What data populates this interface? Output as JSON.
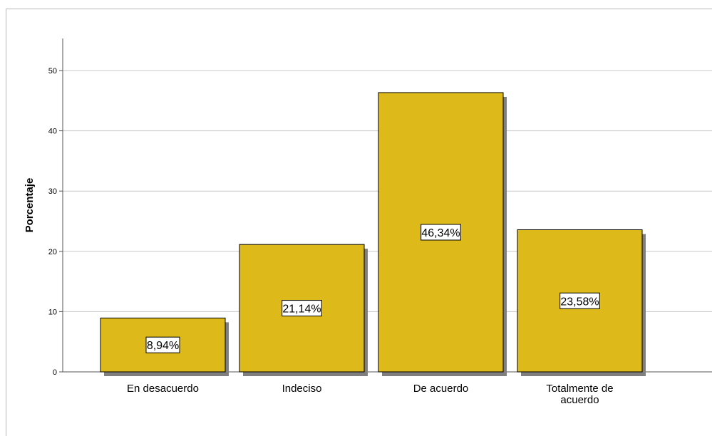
{
  "chart_data": {
    "type": "bar",
    "categories": [
      "En desacuerdo",
      "Indeciso",
      "De acuerdo",
      "Totalmente de acuerdo"
    ],
    "category_label_lines": [
      [
        "En desacuerdo"
      ],
      [
        "Indeciso"
      ],
      [
        "De acuerdo"
      ],
      [
        "Totalmente de",
        "acuerdo"
      ]
    ],
    "values": [
      8.94,
      21.14,
      46.34,
      23.58
    ],
    "data_labels": [
      "8,94%",
      "21,14%",
      "46,34%",
      "23,58%"
    ],
    "ylabel": "Porcentaje",
    "xlabel": "",
    "title": "",
    "ylim": [
      0,
      55
    ],
    "yticks": [
      0,
      10,
      20,
      30,
      40,
      50
    ],
    "grid": true,
    "legend": "none",
    "colors": {
      "bar_fill": "#DDB919",
      "bar_border": "#000000",
      "bar_shadow": "#7F7F7F",
      "grid": "#C8C8C8",
      "axis": "#555555"
    }
  }
}
